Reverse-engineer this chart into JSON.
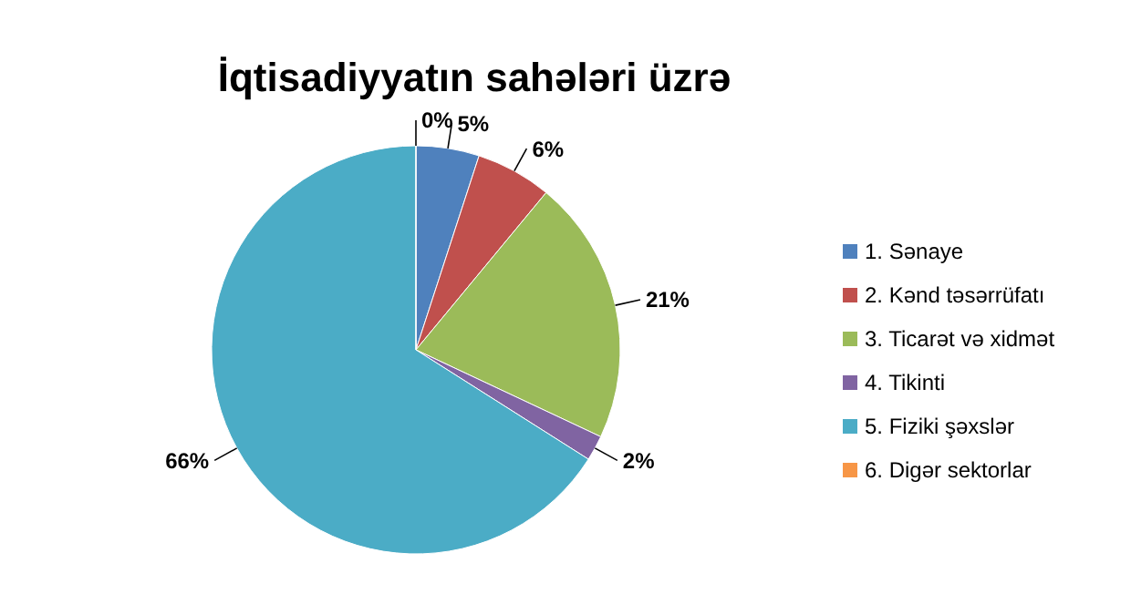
{
  "chart_data": {
    "type": "pie",
    "title": "İqtisadiyyatın sahələri üzrə",
    "categories": [
      "1. Sənaye",
      "2. Kənd təsərrüfatı",
      "3. Ticarət və xidmət",
      "4. Tikinti",
      "5. Fiziki şəxslər",
      "6. Digər sektorlar"
    ],
    "values": [
      5,
      6,
      21,
      2,
      66,
      0
    ],
    "value_labels": [
      "5%",
      "6%",
      "21%",
      "2%",
      "66%",
      "0%"
    ],
    "colors": [
      "#4f81bd",
      "#c0504d",
      "#9bbb59",
      "#8064a2",
      "#4bacc6",
      "#f79646"
    ],
    "legend": "right"
  }
}
